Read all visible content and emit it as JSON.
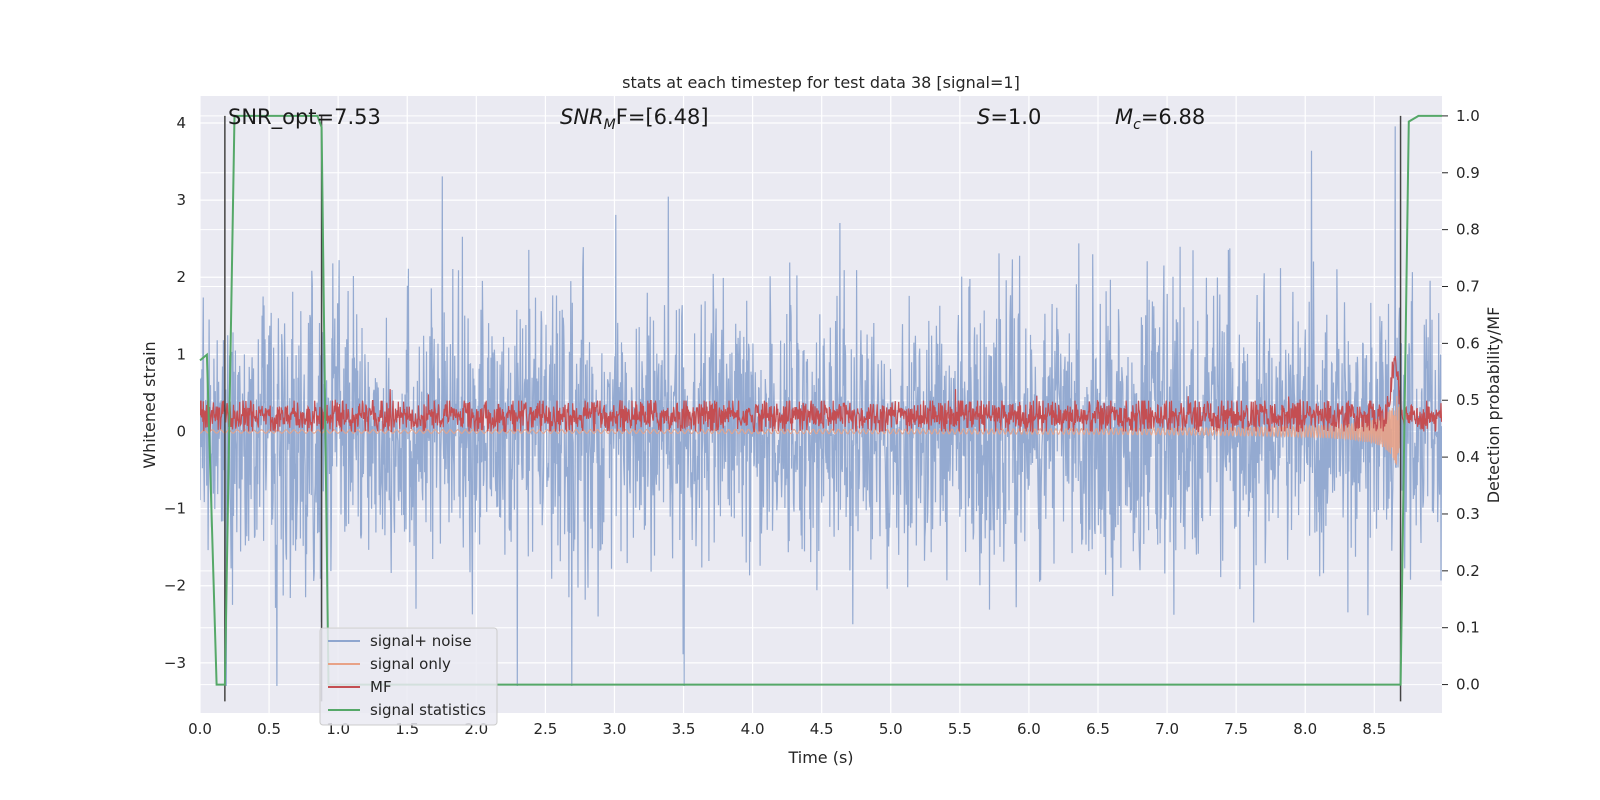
{
  "chart_data": {
    "type": "line",
    "title": "stats at each timestep for test data 38 [signal=1]",
    "xlabel": "Time (s)",
    "ylabel": "Whitened strain",
    "ylabel_right": "Detection probability/MF",
    "xlim": [
      0.0,
      8.99
    ],
    "ylim": [
      -3.65,
      4.35
    ],
    "ylim_right": [
      -0.05,
      1.035
    ],
    "x_ticks": [
      "0.0",
      "0.5",
      "1.0",
      "1.5",
      "2.0",
      "2.5",
      "3.0",
      "3.5",
      "4.0",
      "4.5",
      "5.0",
      "5.5",
      "6.0",
      "6.5",
      "7.0",
      "7.5",
      "8.0",
      "8.5"
    ],
    "y_ticks": [
      "−3",
      "−2",
      "−1",
      "0",
      "1",
      "2",
      "3",
      "4"
    ],
    "y_ticks_right": [
      "0.0",
      "0.1",
      "0.2",
      "0.3",
      "0.4",
      "0.5",
      "0.6",
      "0.7",
      "0.8",
      "0.9",
      "1.0"
    ],
    "grid": true,
    "legend_position": "lower-left",
    "annotations": {
      "snr_opt": "SNR_opt=7.53",
      "snr_mf": "SNR",
      "snr_mf_sub": "M",
      "snr_mf_rest": "F=[6.48]",
      "s_value": "S",
      "s_rest": "=1.0",
      "mc_value": "M",
      "mc_sub": "c",
      "mc_rest": "=6.88"
    },
    "vertical_markers_x": [
      0.18,
      0.88,
      8.69
    ],
    "series": [
      {
        "name": "signal+ noise",
        "color": "#8fa6cf",
        "axis": "left",
        "description_values": "noise band approx ±1.5 with peaks to about 4.0 and troughs to about −3.3"
      },
      {
        "name": "signal only",
        "color": "#e8a287",
        "axis": "left",
        "chirp_end_x": 8.69,
        "chirp_peak_amplitude": 0.9
      },
      {
        "name": "MF",
        "color": "#c44e52",
        "axis": "left",
        "level_range": [
          0.0,
          0.4
        ],
        "peak_x": 8.65,
        "peak_value": 1.0
      },
      {
        "name": "signal statistics",
        "color": "#55a868",
        "axis": "right",
        "x": [
          0.0,
          0.05,
          0.12,
          0.18,
          0.25,
          0.85,
          0.88,
          0.93,
          1.0,
          8.69,
          8.75,
          8.82,
          8.9,
          8.99
        ],
        "values": [
          0.57,
          0.58,
          0.0,
          0.0,
          1.0,
          1.0,
          0.98,
          0.0,
          0.0,
          0.0,
          0.99,
          1.0,
          1.0,
          1.0
        ]
      }
    ]
  }
}
